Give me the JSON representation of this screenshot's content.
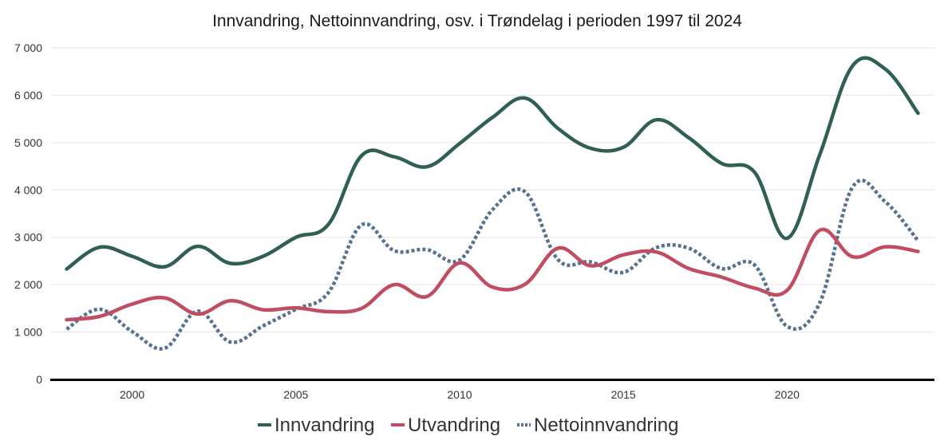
{
  "chart_data": {
    "type": "line",
    "title": "Innvandring, Nettoinnvandring, osv. i Trøndelag i perioden 1997 til 2024",
    "xlabel": "",
    "ylabel": "",
    "x": [
      1998,
      1999,
      2000,
      2001,
      2002,
      2003,
      2004,
      2005,
      2006,
      2007,
      2008,
      2009,
      2010,
      2011,
      2012,
      2013,
      2014,
      2015,
      2016,
      2017,
      2018,
      2019,
      2020,
      2021,
      2022,
      2023,
      2024
    ],
    "xlim": [
      1997.5,
      2024.5
    ],
    "ylim": [
      0,
      7000
    ],
    "x_ticks": [
      2000,
      2005,
      2010,
      2015,
      2020
    ],
    "x_tick_labels": [
      "2000",
      "2005",
      "2010",
      "2015",
      "2020"
    ],
    "y_ticks": [
      0,
      1000,
      2000,
      3000,
      4000,
      5000,
      6000,
      7000
    ],
    "y_tick_labels": [
      "0",
      "1 000",
      "2 000",
      "3 000",
      "4 000",
      "5 000",
      "6 000",
      "7 000"
    ],
    "grid": true,
    "legend_position": "bottom",
    "series": [
      {
        "name": "Innvandring",
        "color": "#2f5f55",
        "style": "solid",
        "values": [
          2330,
          2790,
          2600,
          2380,
          2810,
          2450,
          2600,
          3000,
          3280,
          4720,
          4700,
          4490,
          4980,
          5530,
          5940,
          5300,
          4880,
          4900,
          5480,
          5100,
          4560,
          4380,
          2980,
          4750,
          6620,
          6550,
          5620
        ]
      },
      {
        "name": "Utvandring",
        "color": "#c04d61",
        "style": "solid",
        "values": [
          1260,
          1330,
          1590,
          1720,
          1380,
          1660,
          1470,
          1510,
          1430,
          1500,
          2000,
          1750,
          2460,
          1950,
          2010,
          2770,
          2400,
          2630,
          2690,
          2340,
          2160,
          1930,
          1880,
          3150,
          2590,
          2800,
          2700
        ]
      },
      {
        "name": "Nettoinnvandring",
        "color": "#56728f",
        "style": "dotted",
        "values": [
          1060,
          1480,
          1010,
          660,
          1440,
          790,
          1130,
          1480,
          1840,
          3260,
          2720,
          2740,
          2520,
          3580,
          3960,
          2530,
          2480,
          2260,
          2780,
          2770,
          2340,
          2420,
          1120,
          1620,
          4060,
          3750,
          2930
        ]
      }
    ]
  }
}
